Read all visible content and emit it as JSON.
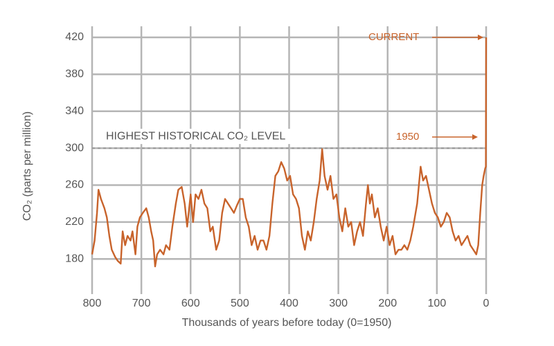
{
  "chart_data": {
    "type": "line",
    "x_label": "Thousands of years before today (0=1950)",
    "y_label": "CO₂ (parts per million)",
    "color": "#c8632b",
    "xlim": [
      800,
      0
    ],
    "ylim": [
      142,
      432
    ],
    "xticks": [
      800,
      700,
      600,
      500,
      400,
      300,
      200,
      100,
      0
    ],
    "yticks": [
      180,
      220,
      260,
      300,
      340,
      380,
      420
    ],
    "grid": true,
    "reference_line": {
      "value": 300,
      "label": "HIGHEST HISTORICAL CO₂ LEVEL"
    },
    "annotations": [
      "CURRENT",
      "1950"
    ],
    "x": [
      800,
      795,
      790,
      787,
      782,
      775,
      770,
      765,
      760,
      753,
      748,
      742,
      738,
      733,
      728,
      722,
      718,
      712,
      708,
      703,
      697,
      690,
      685,
      680,
      676,
      672,
      668,
      662,
      655,
      650,
      643,
      637,
      630,
      625,
      618,
      612,
      607,
      600,
      595,
      590,
      584,
      578,
      572,
      566,
      560,
      555,
      548,
      542,
      536,
      530,
      524,
      518,
      512,
      506,
      500,
      494,
      488,
      482,
      476,
      470,
      464,
      458,
      452,
      446,
      440,
      434,
      428,
      422,
      416,
      410,
      404,
      398,
      392,
      386,
      380,
      374,
      368,
      362,
      356,
      350,
      344,
      338,
      333,
      328,
      322,
      316,
      310,
      304,
      298,
      292,
      286,
      280,
      274,
      268,
      262,
      256,
      250,
      244,
      240,
      236,
      232,
      226,
      220,
      214,
      208,
      202,
      196,
      190,
      184,
      178,
      172,
      166,
      160,
      154,
      148,
      140,
      133,
      128,
      122,
      116,
      110,
      104,
      98,
      92,
      86,
      80,
      74,
      68,
      62,
      56,
      50,
      44,
      38,
      32,
      26,
      20,
      16,
      12,
      8,
      5,
      2,
      0.5,
      0
    ],
    "values": [
      185,
      200,
      230,
      255,
      245,
      235,
      225,
      205,
      190,
      182,
      178,
      175,
      210,
      195,
      205,
      200,
      210,
      185,
      215,
      225,
      230,
      235,
      225,
      210,
      200,
      172,
      185,
      190,
      185,
      195,
      190,
      215,
      240,
      255,
      258,
      240,
      215,
      250,
      220,
      250,
      245,
      255,
      240,
      235,
      210,
      215,
      190,
      200,
      230,
      245,
      240,
      235,
      230,
      238,
      245,
      245,
      225,
      215,
      195,
      205,
      190,
      200,
      200,
      190,
      205,
      240,
      270,
      275,
      285,
      278,
      265,
      270,
      250,
      245,
      235,
      205,
      190,
      210,
      200,
      220,
      245,
      265,
      299,
      270,
      255,
      270,
      245,
      250,
      225,
      210,
      235,
      215,
      220,
      195,
      210,
      220,
      205,
      240,
      260,
      240,
      250,
      225,
      235,
      215,
      200,
      215,
      195,
      205,
      185,
      190,
      190,
      195,
      190,
      200,
      215,
      240,
      280,
      265,
      270,
      255,
      240,
      230,
      225,
      215,
      220,
      230,
      225,
      210,
      200,
      205,
      195,
      200,
      205,
      195,
      190,
      185,
      195,
      230,
      260,
      270,
      278,
      280,
      420
    ]
  }
}
